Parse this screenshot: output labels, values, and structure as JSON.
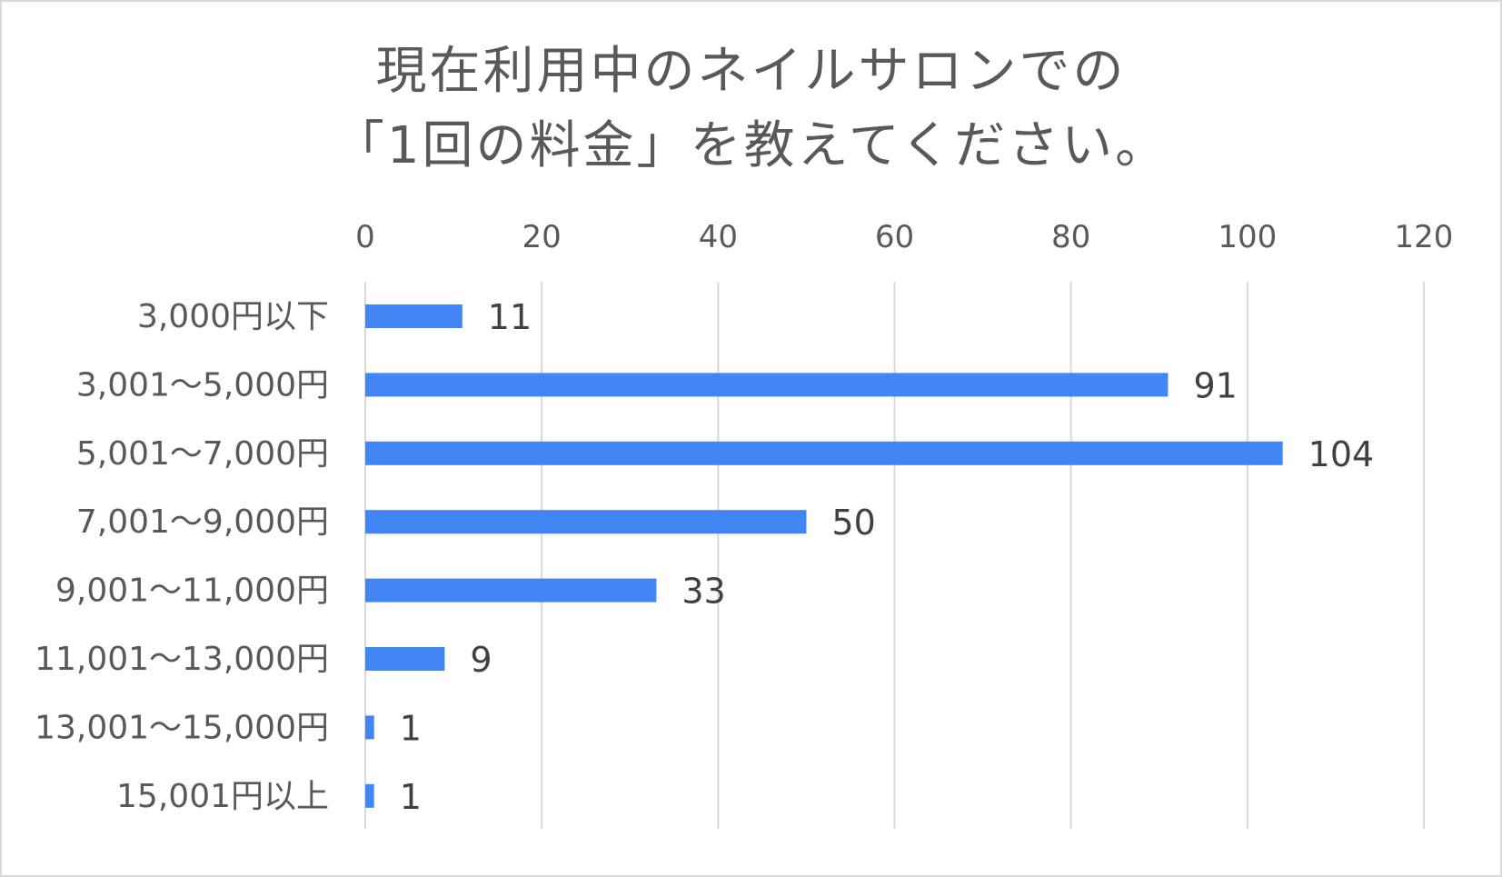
{
  "chart_data": {
    "type": "bar",
    "orientation": "horizontal",
    "title_lines": [
      "現在利用中のネイルサロンでの",
      "「1回の料金」を教えてください。"
    ],
    "categories": [
      "3,000円以下",
      "3,001～5,000円",
      "5,001～7,000円",
      "7,001～9,000円",
      "9,001～11,000円",
      "11,001～13,000円",
      "13,001～15,000円",
      "15,001円以上"
    ],
    "values": [
      11,
      91,
      104,
      50,
      33,
      9,
      1,
      1
    ],
    "xlim": [
      0,
      120
    ],
    "ticks": [
      0,
      20,
      40,
      60,
      80,
      100,
      120
    ],
    "xaxis_position": "top",
    "grid": true,
    "data_labels": true,
    "legend": "none",
    "bar_color": "#4285f4",
    "gridline_color": "#d9d9d9"
  }
}
